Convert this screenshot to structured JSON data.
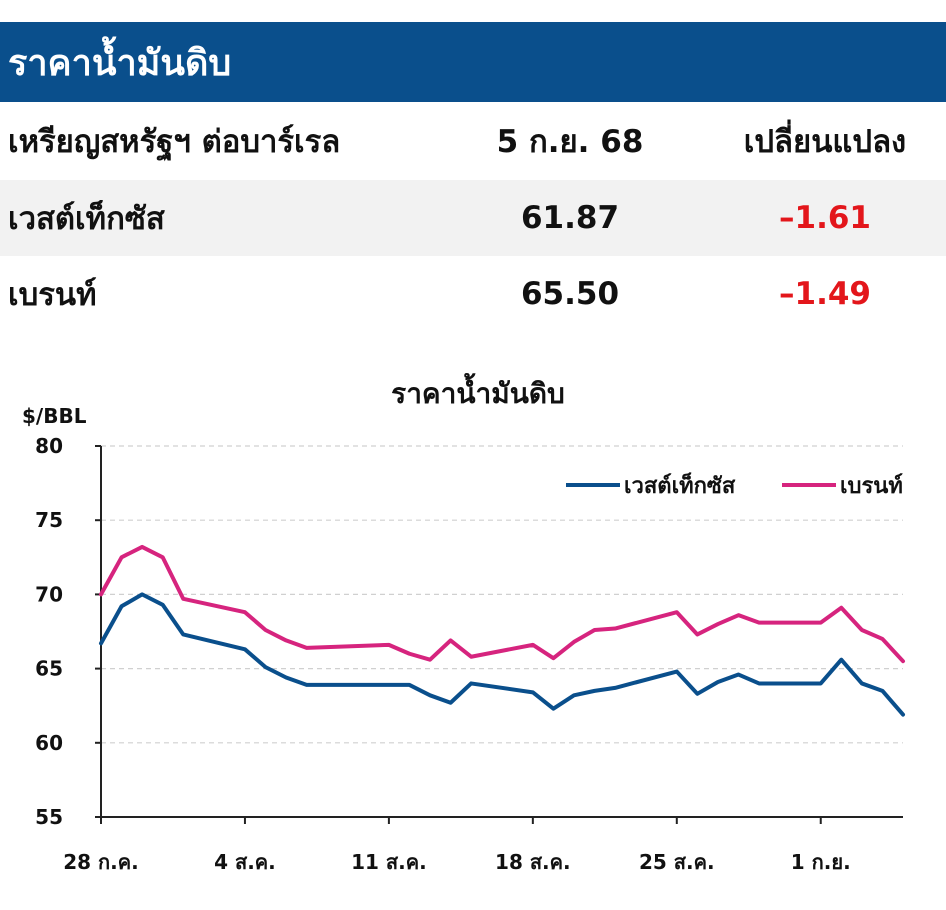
{
  "header": {
    "title": "ราคาน้ำมันดิบ"
  },
  "table": {
    "columns": [
      "เหรียญสหรัฐฯ ต่อบาร์เรล",
      "5 ก.ย. 68",
      "เปลี่ยนแปลง"
    ],
    "rows": [
      {
        "name": "เวสต์เท็กซัส",
        "price": "61.87",
        "change": "–1.61"
      },
      {
        "name": "เบรนท์",
        "price": "65.50",
        "change": "–1.49"
      }
    ]
  },
  "colors": {
    "title_bar": "#0a4f8c",
    "wti": "#0a4f8c",
    "brent": "#d6247e",
    "negative": "#e3161b"
  },
  "chart_data": {
    "type": "line",
    "title": "ราคาน้ำมันดิบ",
    "ylabel": "$/BBL",
    "ylim": [
      55,
      80
    ],
    "yticks": [
      "80",
      "75",
      "70",
      "65",
      "60",
      "55"
    ],
    "xlabels": [
      "28 ก.ค.",
      "4 ส.ค.",
      "11 ส.ค.",
      "18 ส.ค.",
      "25 ส.ค.",
      "1 ก.ย."
    ],
    "grid": "horizontal dashed",
    "legend_position": "top-right",
    "x": [
      0,
      1,
      2,
      3,
      4,
      7,
      8,
      9,
      10,
      14,
      15,
      16,
      17,
      18,
      21,
      22,
      23,
      24,
      25,
      28,
      29,
      30,
      31,
      32,
      35,
      36,
      37,
      38,
      39
    ],
    "series": [
      {
        "name": "เวสต์เท็กซัส",
        "values": [
          66.7,
          69.2,
          70.0,
          69.3,
          67.3,
          66.3,
          65.1,
          64.4,
          63.9,
          63.9,
          63.9,
          63.2,
          62.7,
          64.0,
          63.4,
          62.3,
          63.2,
          63.5,
          63.7,
          64.8,
          63.3,
          64.1,
          64.6,
          64.0,
          64.0,
          65.6,
          64.0,
          63.5,
          61.9
        ]
      },
      {
        "name": "เบรนท์",
        "values": [
          70.0,
          72.5,
          73.2,
          72.5,
          69.7,
          68.8,
          67.6,
          66.9,
          66.4,
          66.6,
          66.0,
          65.6,
          66.9,
          65.8,
          66.6,
          65.7,
          66.8,
          67.6,
          67.7,
          68.8,
          67.3,
          68.0,
          68.6,
          68.1,
          68.1,
          69.1,
          67.6,
          67.0,
          65.5
        ]
      }
    ]
  }
}
